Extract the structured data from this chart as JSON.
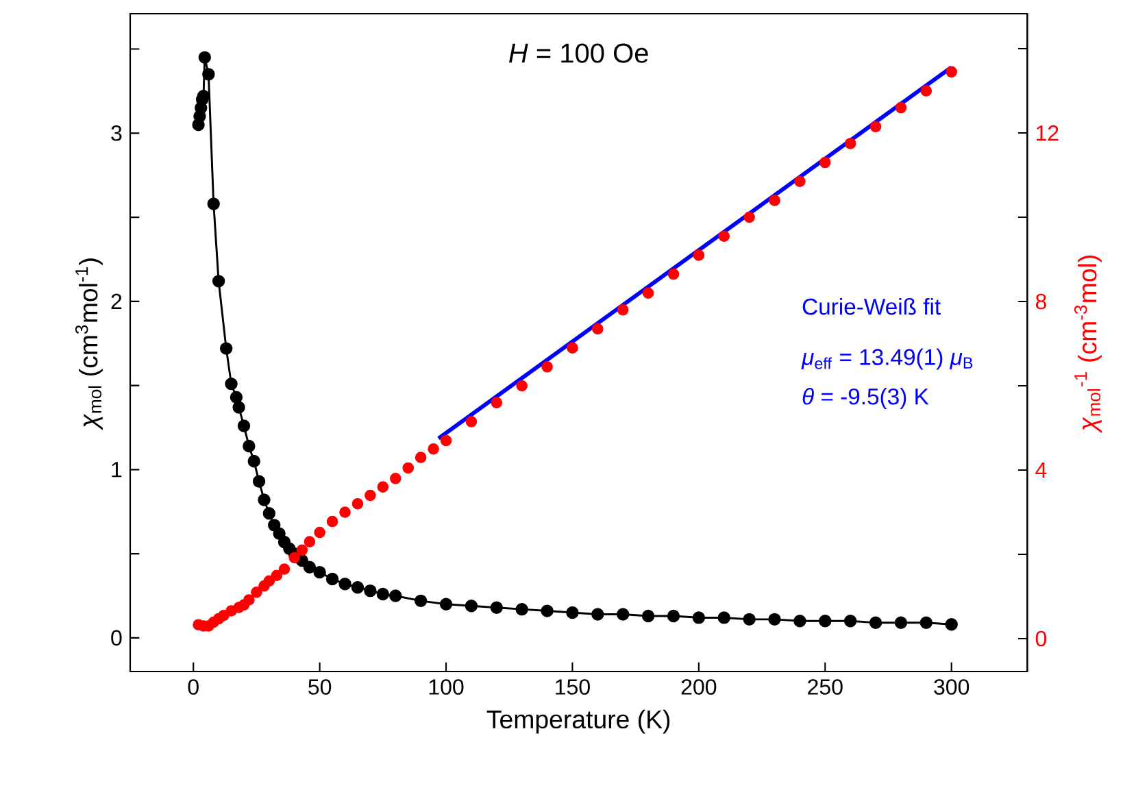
{
  "chart_data": {
    "type": "line",
    "xlabel": "Temperature (K)",
    "ylabel": "*χ*$_{mol}$ (cm$^{3}$mol$^{-1}$)",
    "y2label": "*χ*$_{mol}$$^{-1}$ (cm$^{-3}$mol)",
    "annotations": [
      "*H* = 100 Oe",
      "Curie-Weiß fit",
      "*μ*$_{eff}$ = 13.49(1) *μ*$_{B}$",
      "*θ*    = -9.5(3) K"
    ],
    "xlim": [
      -25,
      330
    ],
    "xticks": [
      0,
      50,
      100,
      150,
      200,
      250,
      300
    ],
    "ylim": [
      -0.2,
      3.71
    ],
    "yticks": [
      0,
      {
        "value": 0.5,
        "label": null
      },
      1,
      {
        "value": 1.5,
        "label": null
      },
      2,
      {
        "value": 2.5,
        "label": null
      },
      3,
      {
        "value": 3.5,
        "label": null
      }
    ],
    "y2lim": [
      -0.78,
      14.83
    ],
    "y2ticks": [
      0,
      {
        "value": 2,
        "label": null
      },
      4,
      {
        "value": 6,
        "label": null
      },
      8,
      {
        "value": 10,
        "label": null
      },
      12,
      {
        "value": 14,
        "label": null
      }
    ],
    "marker": "circle",
    "series": [
      {
        "color": "#000000",
        "x": [
          2,
          2.5,
          3,
          3.5,
          4,
          4.5,
          6,
          8,
          10,
          13,
          15,
          17,
          18,
          20,
          22,
          24,
          26,
          28,
          30,
          32,
          34,
          36,
          38,
          40,
          43,
          46,
          50,
          55,
          60,
          65,
          70,
          75,
          80,
          90,
          100,
          110,
          120,
          130,
          140,
          150,
          160,
          170,
          180,
          190,
          200,
          210,
          220,
          230,
          240,
          250,
          260,
          270,
          280,
          290,
          300
        ],
        "values": [
          3.05,
          3.1,
          3.15,
          3.2,
          3.22,
          3.45,
          3.35,
          2.58,
          2.12,
          1.72,
          1.51,
          1.43,
          1.37,
          1.26,
          1.14,
          1.05,
          0.93,
          0.82,
          0.74,
          0.67,
          0.62,
          0.57,
          0.53,
          0.5,
          0.46,
          0.42,
          0.39,
          0.35,
          0.32,
          0.3,
          0.28,
          0.26,
          0.25,
          0.22,
          0.2,
          0.19,
          0.18,
          0.17,
          0.16,
          0.15,
          0.14,
          0.14,
          0.13,
          0.13,
          0.12,
          0.12,
          0.11,
          0.11,
          0.1,
          0.1,
          0.1,
          0.09,
          0.09,
          0.09,
          0.08
        ]
      },
      {
        "type": "scatter",
        "axis": "y2",
        "color": "#ff0000",
        "x": [
          2,
          4,
          6,
          8,
          10,
          12,
          15,
          18,
          20,
          22,
          25,
          28,
          30,
          33,
          36,
          40,
          43,
          46,
          50,
          55,
          60,
          65,
          70,
          75,
          80,
          85,
          90,
          95,
          100,
          110,
          120,
          130,
          140,
          150,
          160,
          170,
          180,
          190,
          200,
          210,
          220,
          230,
          240,
          250,
          260,
          270,
          280,
          290,
          300
        ],
        "values": [
          0.33,
          0.3,
          0.3,
          0.39,
          0.47,
          0.55,
          0.66,
          0.74,
          0.8,
          0.92,
          1.1,
          1.25,
          1.37,
          1.5,
          1.65,
          1.92,
          2.1,
          2.3,
          2.52,
          2.78,
          3.0,
          3.2,
          3.4,
          3.6,
          3.8,
          4.05,
          4.3,
          4.5,
          4.7,
          5.15,
          5.6,
          6.0,
          6.45,
          6.9,
          7.35,
          7.8,
          8.2,
          8.65,
          9.1,
          9.55,
          10.0,
          10.4,
          10.85,
          11.3,
          11.75,
          12.15,
          12.6,
          13.0,
          13.45
        ]
      },
      {
        "type": "line",
        "axis": "y2",
        "color": "#0000ff",
        "marker": "none",
        "x": [
          97,
          300
        ],
        "values": [
          4.75,
          13.56
        ]
      }
    ]
  }
}
